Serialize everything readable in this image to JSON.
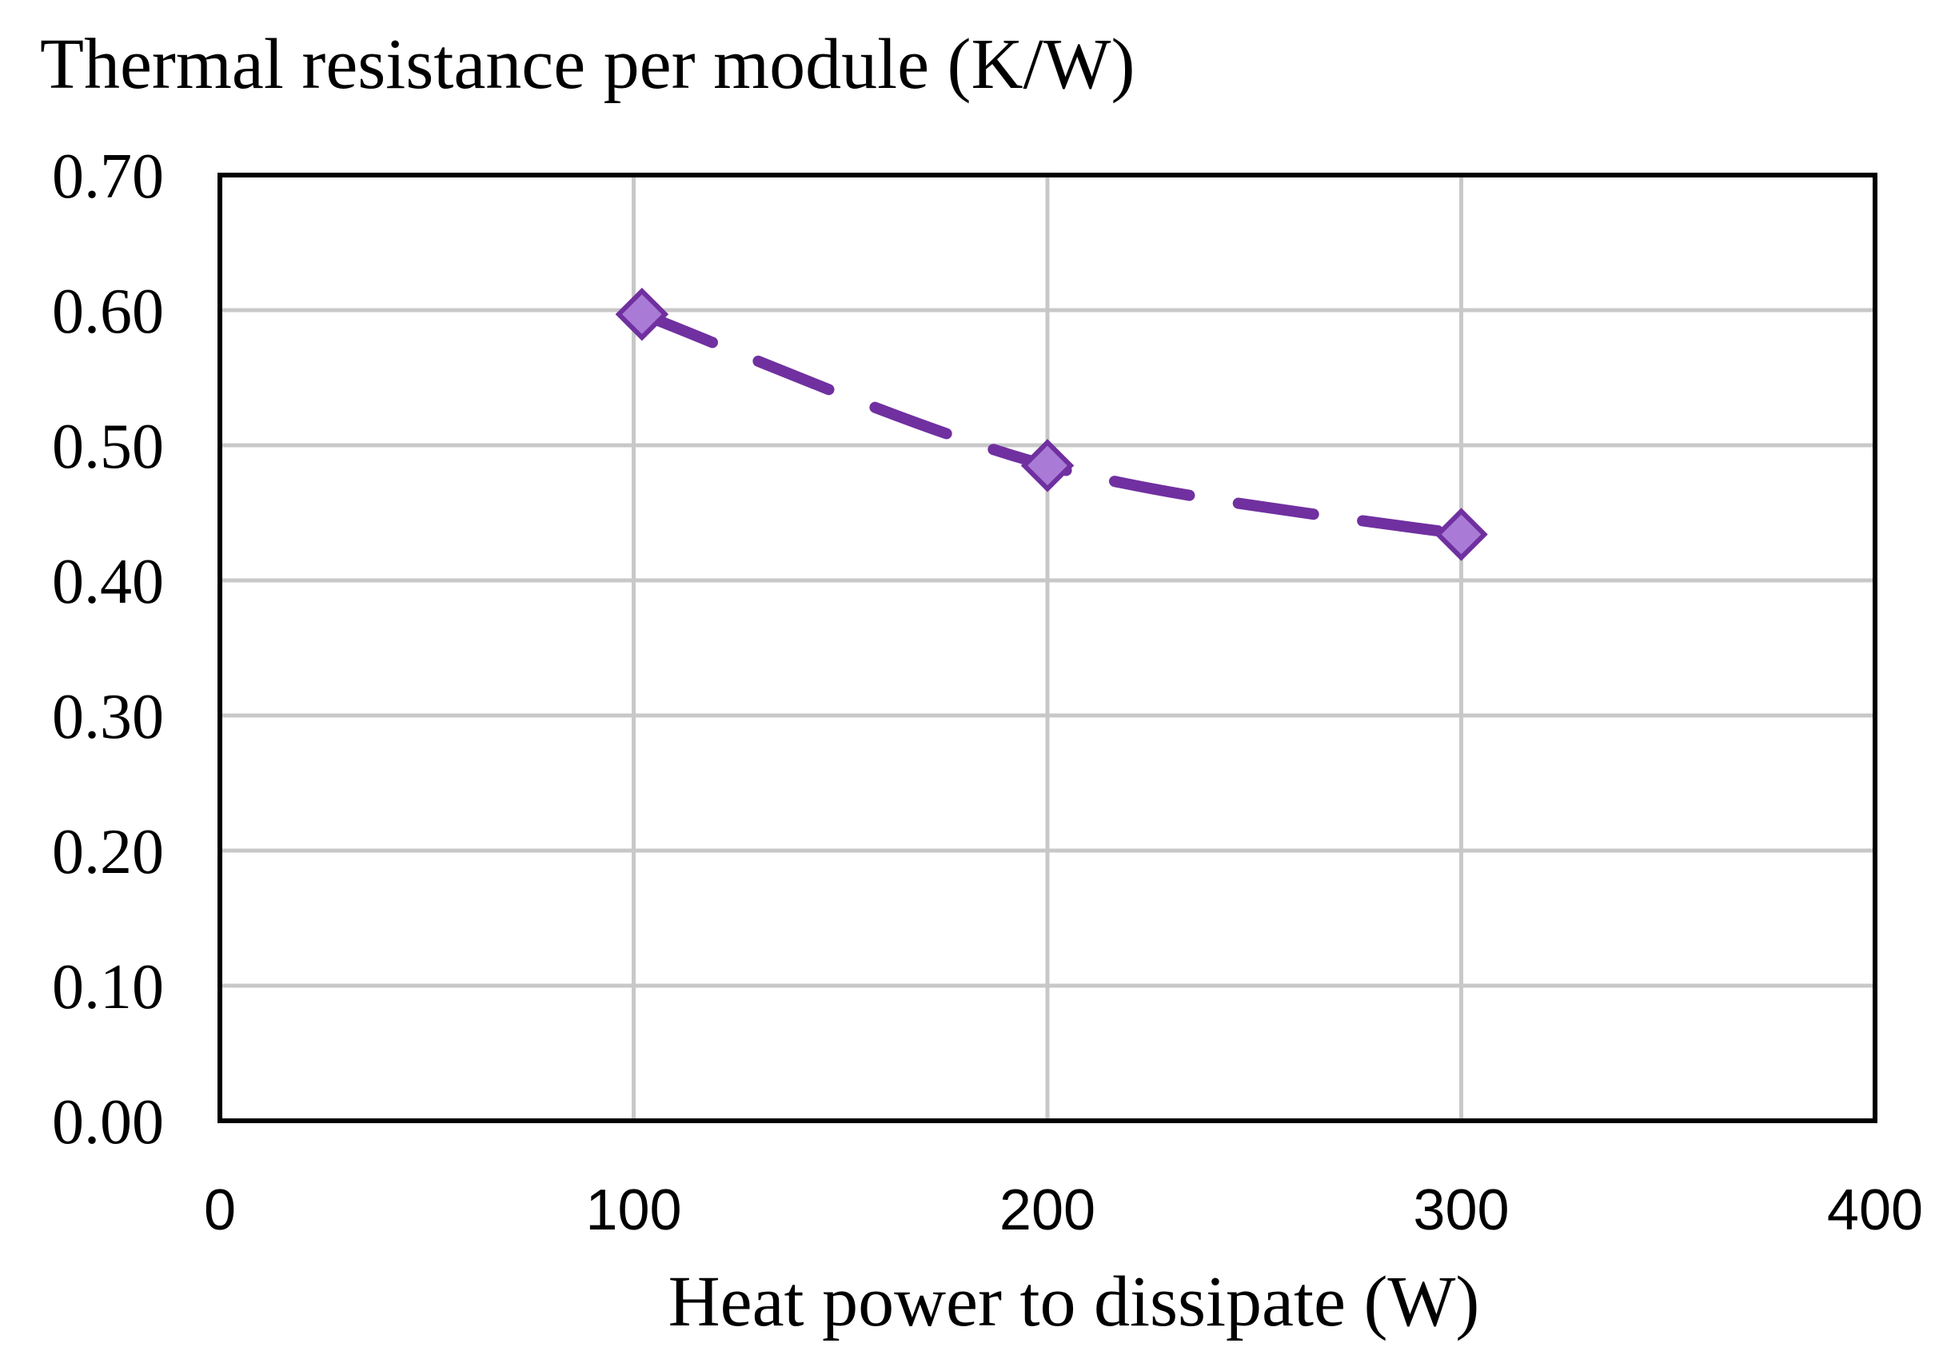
{
  "chart_data": {
    "type": "line",
    "title": "Thermal resistance per module (K/W)",
    "xlabel": "Heat power to dissipate (W)",
    "ylabel": "Thermal resistance per module (K/W)",
    "xlim": [
      0,
      400
    ],
    "ylim": [
      0,
      0.7
    ],
    "x_ticks": [
      "0",
      "100",
      "200",
      "300",
      "400"
    ],
    "y_ticks": [
      "0.00",
      "0.10",
      "0.20",
      "0.30",
      "0.40",
      "0.50",
      "0.60",
      "0.70"
    ],
    "grid": true,
    "series": [
      {
        "name": "Thermal resistance",
        "x": [
          102,
          200,
          300
        ],
        "y": [
          0.597,
          0.485,
          0.434
        ],
        "line_style": "dashed",
        "marker": "diamond",
        "color": "#7030A0",
        "marker_fill": "#A97BD6"
      }
    ]
  }
}
